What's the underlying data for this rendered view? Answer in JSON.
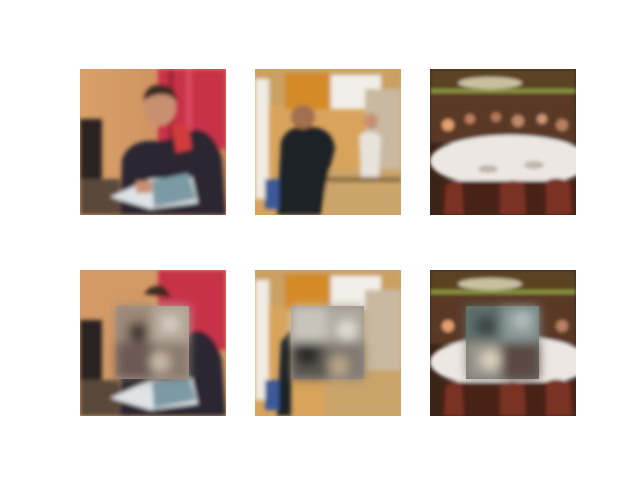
{
  "figure": {
    "rows": [
      {
        "role": "original",
        "images": [
          {
            "scene": "person-reading-book"
          },
          {
            "scene": "people-in-kitchen"
          },
          {
            "scene": "banquet-dining-hall"
          }
        ]
      },
      {
        "role": "center-masked-inpainted",
        "images": [
          {
            "scene": "person-reading-book"
          },
          {
            "scene": "people-in-kitchen"
          },
          {
            "scene": "banquet-dining-hall"
          }
        ]
      }
    ]
  }
}
